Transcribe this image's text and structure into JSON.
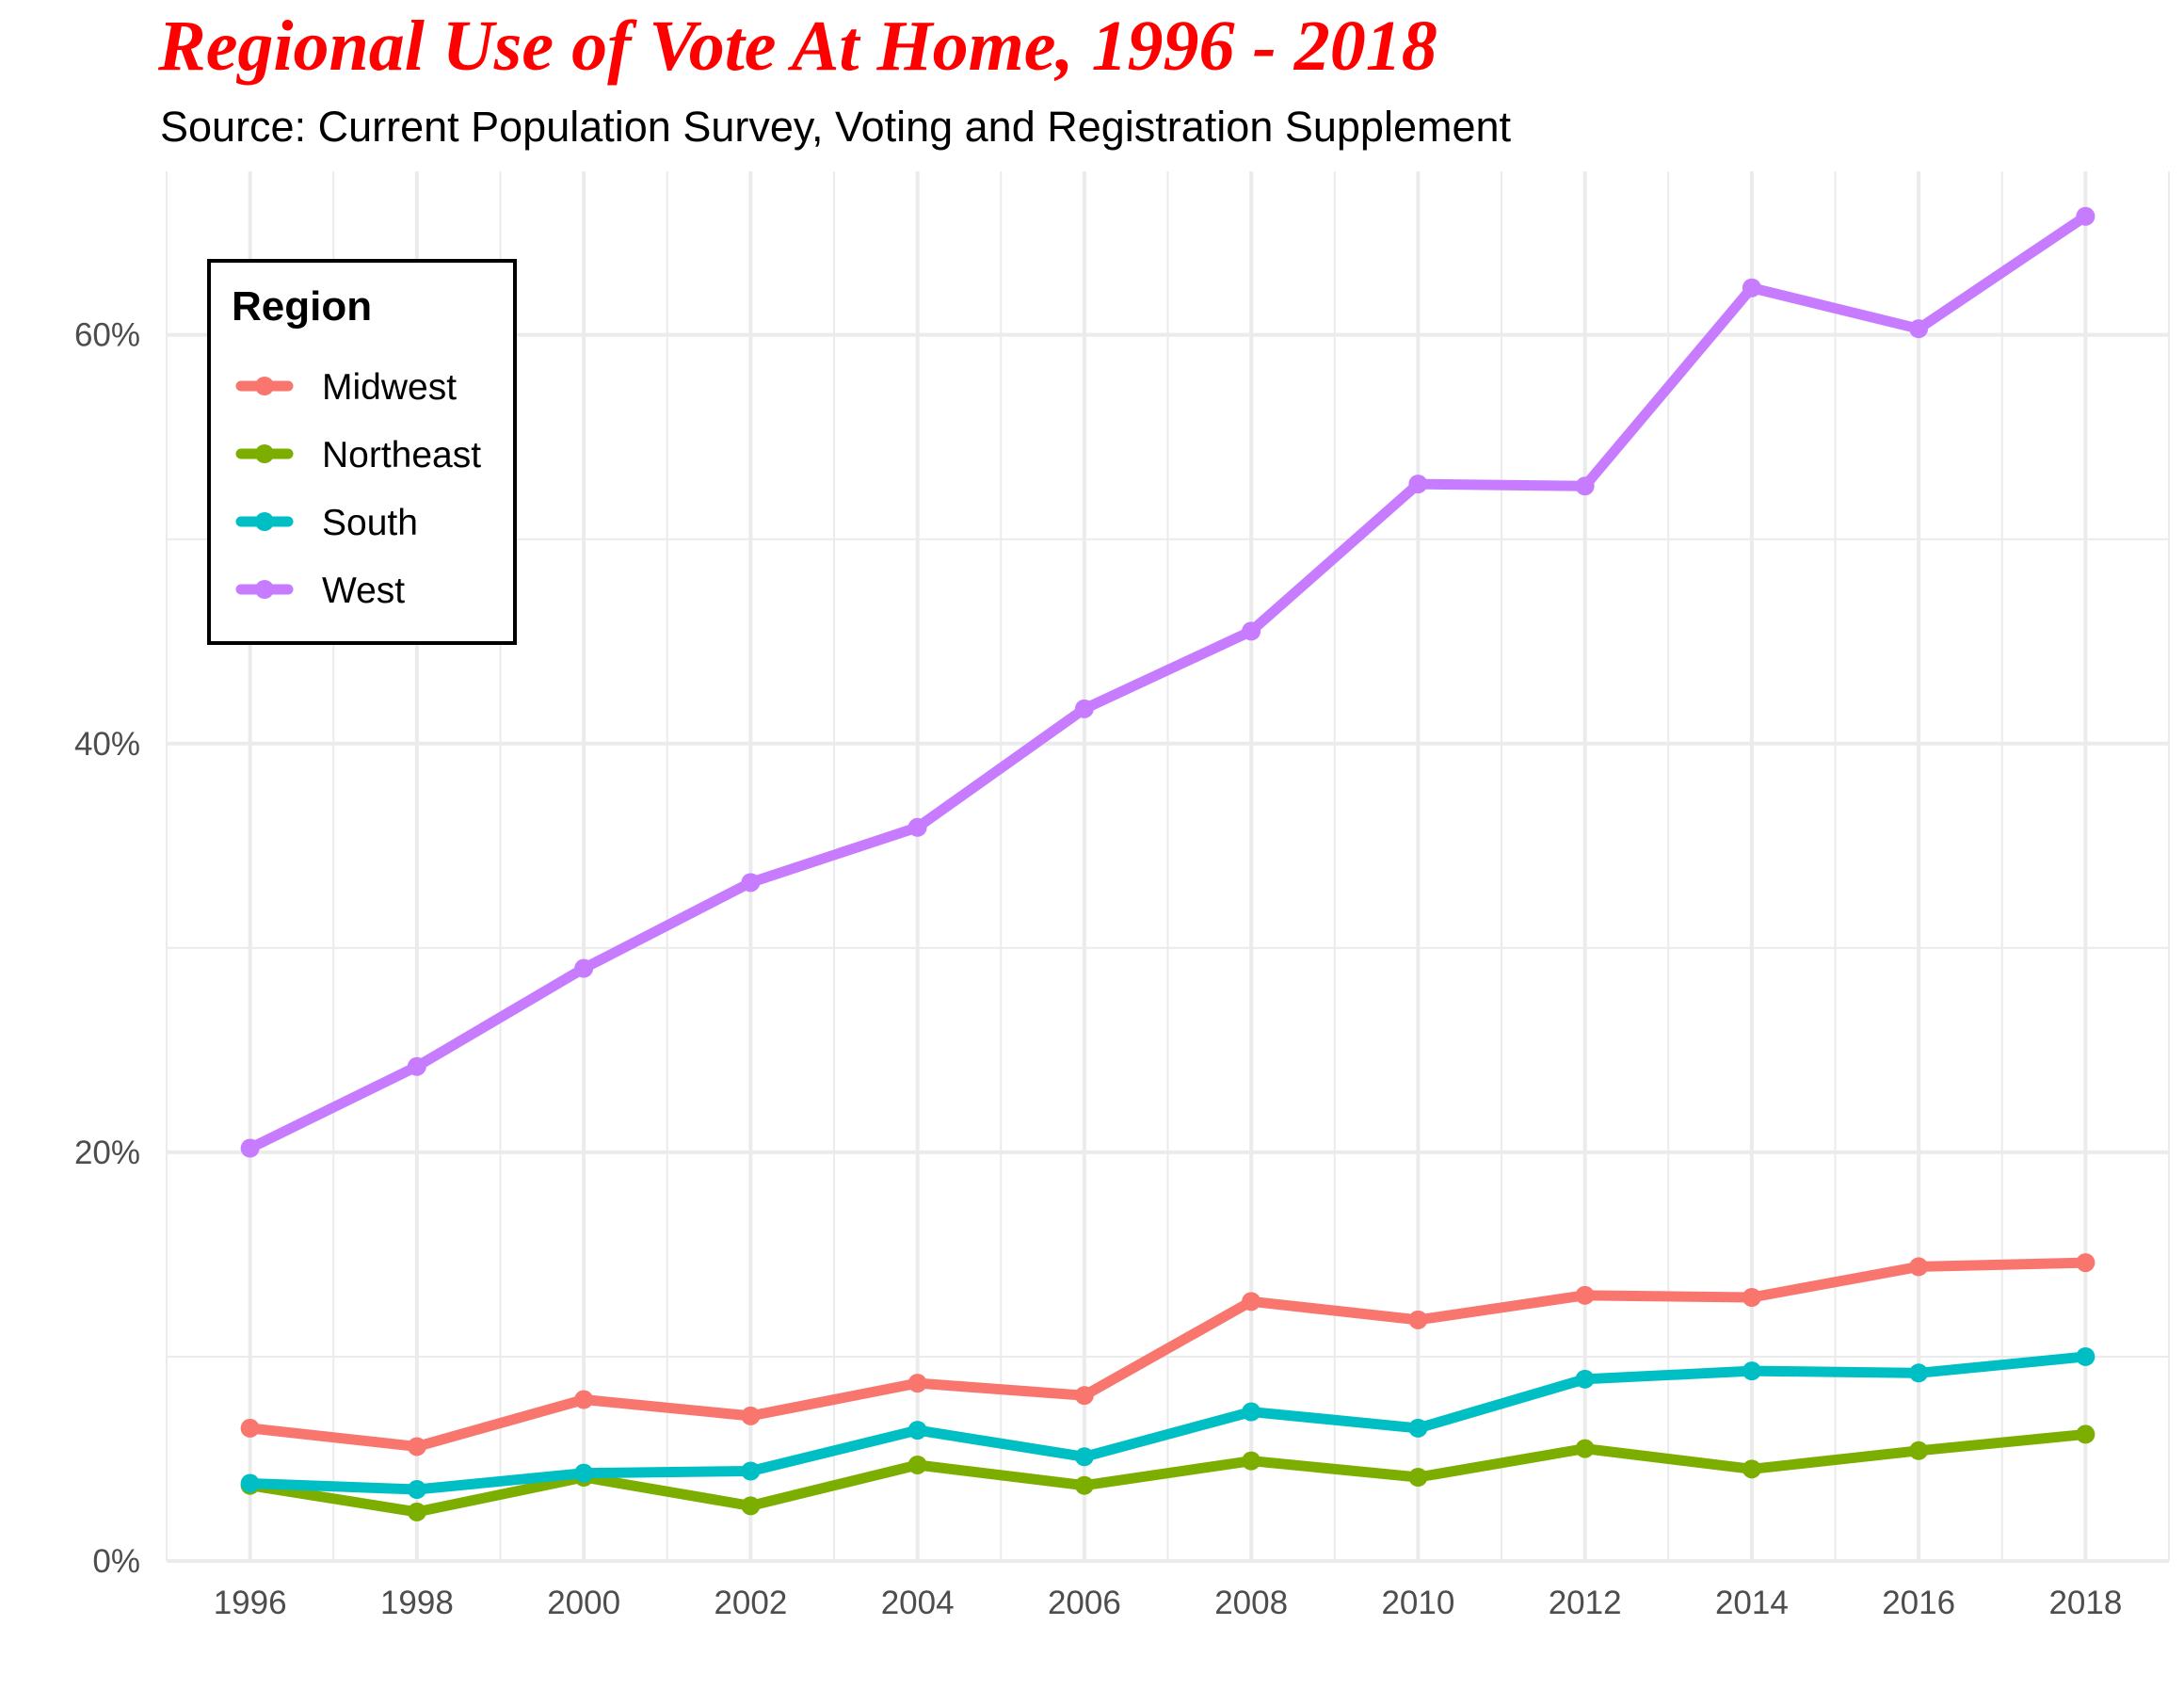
{
  "header": {
    "title": "Regional Use of Vote At Home, 1996 - 2018",
    "subtitle": "Source: Current Population Survey, Voting and Registration Supplement"
  },
  "colors": {
    "title": "#ff0000",
    "grid": "#ebebeb",
    "Midwest": "#f8766d",
    "Northeast": "#7cae00",
    "South": "#00bfc4",
    "West": "#c77cff"
  },
  "chart_data": {
    "type": "line",
    "title": "Regional Use of Vote At Home, 1996 - 2018",
    "subtitle": "Source: Current Population Survey, Voting and Registration Supplement",
    "xlabel": "",
    "ylabel": "",
    "x": [
      1996,
      1998,
      2000,
      2002,
      2004,
      2006,
      2008,
      2010,
      2012,
      2014,
      2016,
      2018
    ],
    "x_ticks": [
      "1996",
      "1998",
      "2000",
      "2002",
      "2004",
      "2006",
      "2008",
      "2010",
      "2012",
      "2014",
      "2016",
      "2018"
    ],
    "y_ticks": [
      {
        "value": 0,
        "label": "0%"
      },
      {
        "value": 20,
        "label": "20%"
      },
      {
        "value": 40,
        "label": "40%"
      },
      {
        "value": 60,
        "label": "60%"
      }
    ],
    "xlim": [
      1995,
      2019
    ],
    "ylim": [
      0,
      68
    ],
    "grid": true,
    "legend": {
      "title": "Region",
      "position": "top-left"
    },
    "series": [
      {
        "name": "Midwest",
        "values": [
          6.5,
          5.6,
          7.9,
          7.1,
          8.7,
          8.1,
          12.7,
          11.8,
          13.0,
          12.9,
          14.4,
          14.6
        ]
      },
      {
        "name": "Northeast",
        "values": [
          3.7,
          2.4,
          4.1,
          2.7,
          4.7,
          3.7,
          4.9,
          4.1,
          5.5,
          4.5,
          5.4,
          6.2
        ]
      },
      {
        "name": "South",
        "values": [
          3.8,
          3.5,
          4.3,
          4.4,
          6.4,
          5.1,
          7.3,
          6.5,
          8.9,
          9.3,
          9.2,
          10.0
        ]
      },
      {
        "name": "West",
        "values": [
          20.2,
          24.2,
          29.0,
          33.2,
          35.9,
          41.7,
          45.5,
          52.7,
          52.6,
          62.3,
          60.3,
          65.8
        ]
      }
    ]
  }
}
